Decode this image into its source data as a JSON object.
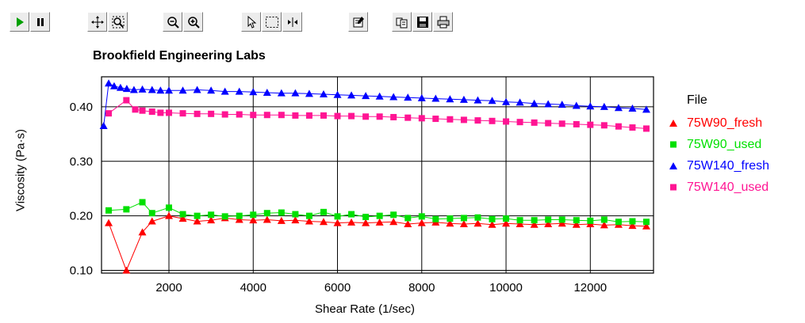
{
  "toolbar": {
    "buttons": [
      {
        "name": "play-button",
        "icon": "play-icon"
      },
      {
        "name": "pause-button",
        "icon": "pause-icon"
      },
      {
        "name": "pan-button",
        "icon": "pan-move-icon"
      },
      {
        "name": "zoom-region-button",
        "icon": "zoom-region-icon"
      },
      {
        "name": "zoom-out-button",
        "icon": "zoom-out-icon"
      },
      {
        "name": "zoom-in-button",
        "icon": "zoom-in-icon"
      },
      {
        "name": "pointer-button",
        "icon": "pointer-arrow-icon"
      },
      {
        "name": "select-rect-button",
        "icon": "select-rectangle-icon"
      },
      {
        "name": "cursor-button",
        "icon": "cursor-marker-icon"
      },
      {
        "name": "properties-button",
        "icon": "properties-icon"
      },
      {
        "name": "copy-button",
        "icon": "copy-icon"
      },
      {
        "name": "save-button",
        "icon": "save-disk-icon"
      },
      {
        "name": "print-button",
        "icon": "printer-icon"
      }
    ]
  },
  "chart_data": {
    "type": "line",
    "title": "Brookfield Engineering Labs",
    "xlabel": "Shear Rate (1/sec)",
    "ylabel": "Viscosity (Pa·s)",
    "xlim": [
      400,
      13500
    ],
    "ylim": [
      0.095,
      0.455
    ],
    "xticks": [
      2000,
      4000,
      6000,
      8000,
      10000,
      12000
    ],
    "yticks": [
      0.1,
      0.2,
      0.3,
      0.4
    ],
    "xtick_labels": [
      "2000",
      "4000",
      "6000",
      "8000",
      "10000",
      "12000"
    ],
    "ytick_labels": [
      "0.10",
      "0.20",
      "0.30",
      "0.40"
    ],
    "grid": true,
    "legend": {
      "title": "File",
      "position": "right"
    },
    "series": [
      {
        "name": "75W90_fresh",
        "color": "#ff0000",
        "marker": "triangle",
        "x": [
          570,
          990,
          1370,
          1600,
          2000,
          2330,
          2670,
          3000,
          3330,
          3670,
          4000,
          4330,
          4670,
          5000,
          5330,
          5670,
          6000,
          6330,
          6670,
          7000,
          7330,
          7670,
          8000,
          8330,
          8670,
          9000,
          9330,
          9670,
          10000,
          10330,
          10670,
          11000,
          11330,
          11670,
          12000,
          12330,
          12670,
          13000,
          13330
        ],
        "y": [
          0.187,
          0.1,
          0.17,
          0.19,
          0.2,
          0.195,
          0.19,
          0.192,
          0.196,
          0.193,
          0.192,
          0.193,
          0.191,
          0.192,
          0.19,
          0.189,
          0.187,
          0.188,
          0.187,
          0.188,
          0.189,
          0.185,
          0.187,
          0.188,
          0.186,
          0.185,
          0.186,
          0.184,
          0.186,
          0.185,
          0.184,
          0.185,
          0.186,
          0.184,
          0.185,
          0.183,
          0.184,
          0.182,
          0.181
        ]
      },
      {
        "name": "75W90_used",
        "color": "#00e000",
        "marker": "square",
        "x": [
          570,
          990,
          1370,
          1600,
          2000,
          2330,
          2670,
          3000,
          3330,
          3670,
          4000,
          4330,
          4670,
          5000,
          5330,
          5670,
          6000,
          6330,
          6670,
          7000,
          7330,
          7670,
          8000,
          8330,
          8670,
          9000,
          9330,
          9670,
          10000,
          10330,
          10670,
          11000,
          11330,
          11670,
          12000,
          12330,
          12670,
          13000,
          13330
        ],
        "y": [
          0.21,
          0.212,
          0.225,
          0.205,
          0.215,
          0.203,
          0.2,
          0.202,
          0.199,
          0.2,
          0.202,
          0.205,
          0.206,
          0.203,
          0.2,
          0.207,
          0.199,
          0.203,
          0.198,
          0.2,
          0.202,
          0.196,
          0.199,
          0.194,
          0.195,
          0.196,
          0.197,
          0.194,
          0.195,
          0.192,
          0.192,
          0.193,
          0.193,
          0.192,
          0.191,
          0.193,
          0.189,
          0.19,
          0.189
        ]
      },
      {
        "name": "75W140_fresh",
        "color": "#0000ff",
        "marker": "triangle",
        "x": [
          450,
          570,
          700,
          850,
          1000,
          1170,
          1370,
          1600,
          1800,
          2000,
          2330,
          2670,
          3000,
          3330,
          3670,
          4000,
          4330,
          4670,
          5000,
          5330,
          5670,
          6000,
          6330,
          6670,
          7000,
          7330,
          7670,
          8000,
          8330,
          8670,
          9000,
          9330,
          9670,
          10000,
          10330,
          10670,
          11000,
          11330,
          11670,
          12000,
          12330,
          12670,
          13000,
          13330
        ],
        "y": [
          0.365,
          0.443,
          0.438,
          0.435,
          0.433,
          0.431,
          0.432,
          0.431,
          0.43,
          0.43,
          0.43,
          0.431,
          0.43,
          0.428,
          0.428,
          0.427,
          0.426,
          0.425,
          0.425,
          0.424,
          0.423,
          0.422,
          0.421,
          0.42,
          0.419,
          0.418,
          0.417,
          0.416,
          0.415,
          0.414,
          0.413,
          0.412,
          0.411,
          0.409,
          0.408,
          0.406,
          0.405,
          0.404,
          0.402,
          0.401,
          0.4,
          0.398,
          0.397,
          0.395
        ]
      },
      {
        "name": "75W140_used",
        "color": "#ff1493",
        "marker": "square",
        "x": [
          570,
          990,
          1200,
          1370,
          1600,
          1800,
          2000,
          2330,
          2670,
          3000,
          3330,
          3670,
          4000,
          4330,
          4670,
          5000,
          5330,
          5670,
          6000,
          6330,
          6670,
          7000,
          7330,
          7670,
          8000,
          8330,
          8670,
          9000,
          9330,
          9670,
          10000,
          10330,
          10670,
          11000,
          11330,
          11670,
          12000,
          12330,
          12670,
          13000,
          13330
        ],
        "y": [
          0.388,
          0.412,
          0.395,
          0.393,
          0.391,
          0.389,
          0.389,
          0.388,
          0.387,
          0.387,
          0.386,
          0.386,
          0.385,
          0.385,
          0.385,
          0.384,
          0.384,
          0.384,
          0.383,
          0.383,
          0.382,
          0.382,
          0.381,
          0.38,
          0.379,
          0.378,
          0.377,
          0.376,
          0.375,
          0.374,
          0.373,
          0.372,
          0.371,
          0.37,
          0.369,
          0.368,
          0.367,
          0.366,
          0.364,
          0.362,
          0.36
        ]
      }
    ]
  }
}
